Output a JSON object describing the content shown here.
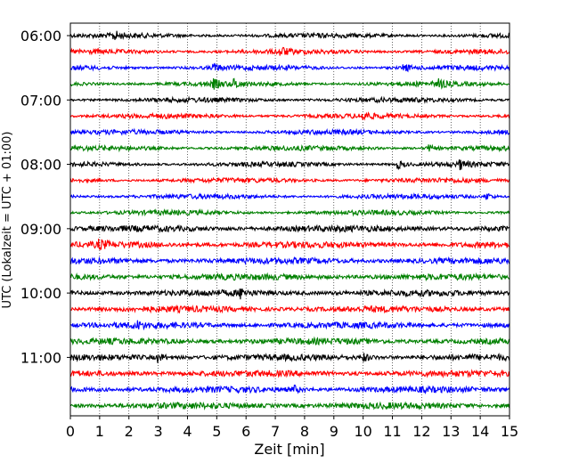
{
  "chart_data": {
    "type": "line",
    "title": "",
    "xlabel": "Zeit  [min]",
    "ylabel": "UTC (Lokalzeit = UTC + 01:00)",
    "xlim": [
      0,
      15
    ],
    "x_ticks": [
      0,
      1,
      2,
      3,
      4,
      5,
      6,
      7,
      8,
      9,
      10,
      11,
      12,
      13,
      14,
      15
    ],
    "y_tick_labels": [
      "06:00",
      "07:00",
      "08:00",
      "09:00",
      "10:00",
      "11:00"
    ],
    "rows_per_hour": 4,
    "minutes_per_row": 15,
    "first_row_time": "06:00",
    "row_count": 24,
    "grid": "vertical dotted lines at every minute",
    "legend": "none",
    "colors": [
      "#000000",
      "#ff0000",
      "#0000ff",
      "#008000"
    ],
    "events": [
      {
        "row": 0,
        "minute": 1.5
      },
      {
        "row": 1,
        "minute": 7.2
      },
      {
        "row": 2,
        "minute": 4.9
      },
      {
        "row": 2,
        "minute": 11.4
      },
      {
        "row": 3,
        "minute": 4.9
      },
      {
        "row": 3,
        "minute": 5.6
      },
      {
        "row": 3,
        "minute": 12.6
      },
      {
        "row": 5,
        "minute": 10.0
      },
      {
        "row": 7,
        "minute": 12.2
      },
      {
        "row": 8,
        "minute": 11.2
      },
      {
        "row": 8,
        "minute": 13.3
      },
      {
        "row": 10,
        "minute": 14.2
      },
      {
        "row": 13,
        "minute": 1.0
      },
      {
        "row": 16,
        "minute": 5.8
      },
      {
        "row": 18,
        "minute": 2.2
      },
      {
        "row": 20,
        "minute": 3.0
      },
      {
        "row": 20,
        "minute": 10.0
      },
      {
        "row": 22,
        "minute": 7.6
      }
    ]
  }
}
